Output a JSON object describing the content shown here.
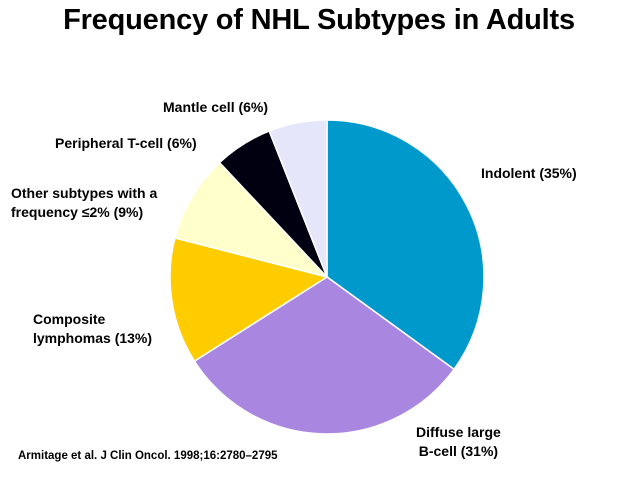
{
  "chart_data": {
    "type": "pie",
    "title": "Frequency of NHL Subtypes in Adults",
    "start_angle_deg": 0,
    "direction": "clockwise",
    "slices": [
      {
        "label_lines": [
          "Indolent (35%)"
        ],
        "value": 35,
        "color": "#0099CC"
      },
      {
        "label_lines": [
          "Diffuse large",
          "B-cell (31%)"
        ],
        "value": 31,
        "color": "#A987E0"
      },
      {
        "label_lines": [
          "Composite",
          "lymphomas (13%)"
        ],
        "value": 13,
        "color": "#FFCC00"
      },
      {
        "label_lines": [
          "Other subtypes with a",
          "frequency ≤2% (9%)"
        ],
        "value": 9,
        "color": "#FFFFCC"
      },
      {
        "label_lines": [
          "Peripheral T-cell (6%)"
        ],
        "value": 6,
        "color": "#000011"
      },
      {
        "label_lines": [
          "Mantle cell (6%)"
        ],
        "value": 6,
        "color": "#E6E6FA"
      }
    ]
  },
  "source": "Armitage et al. J Clin Oncol. 1998;16:2780–2795"
}
